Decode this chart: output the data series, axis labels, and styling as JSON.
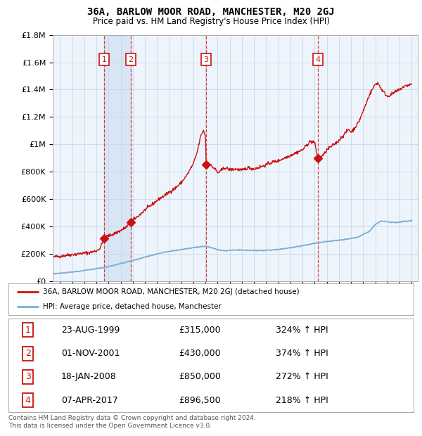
{
  "title": "36A, BARLOW MOOR ROAD, MANCHESTER, M20 2GJ",
  "subtitle": "Price paid vs. HM Land Registry's House Price Index (HPI)",
  "hpi_line_color": "#7bafd4",
  "price_line_color": "#cc1111",
  "background_color": "#ddeeff",
  "plot_bg": "#eef4fb",
  "grid_color": "#c8d8e8",
  "transaction_dates": [
    1999.644,
    2001.836,
    2008.046,
    2017.267
  ],
  "transaction_prices": [
    315000,
    430000,
    850000,
    896500
  ],
  "legend_entries": [
    "36A, BARLOW MOOR ROAD, MANCHESTER, M20 2GJ (detached house)",
    "HPI: Average price, detached house, Manchester"
  ],
  "table_rows": [
    [
      "1",
      "23-AUG-1999",
      "£315,000",
      "324% ↑ HPI"
    ],
    [
      "2",
      "01-NOV-2001",
      "£430,000",
      "374% ↑ HPI"
    ],
    [
      "3",
      "18-JAN-2008",
      "£850,000",
      "272% ↑ HPI"
    ],
    [
      "4",
      "07-APR-2017",
      "£896,500",
      "218% ↑ HPI"
    ]
  ],
  "footnote": "Contains HM Land Registry data © Crown copyright and database right 2024.\nThis data is licensed under the Open Government Licence v3.0.",
  "ylim": [
    0,
    1800000
  ],
  "xlim_start": 1995.4,
  "xlim_end": 2025.5,
  "yticks": [
    0,
    200000,
    400000,
    600000,
    800000,
    1000000,
    1200000,
    1400000,
    1600000,
    1800000
  ],
  "ytick_labels": [
    "£0",
    "£200K",
    "£400K",
    "£600K",
    "£800K",
    "£1M",
    "£1.2M",
    "£1.4M",
    "£1.6M",
    "£1.8M"
  ]
}
